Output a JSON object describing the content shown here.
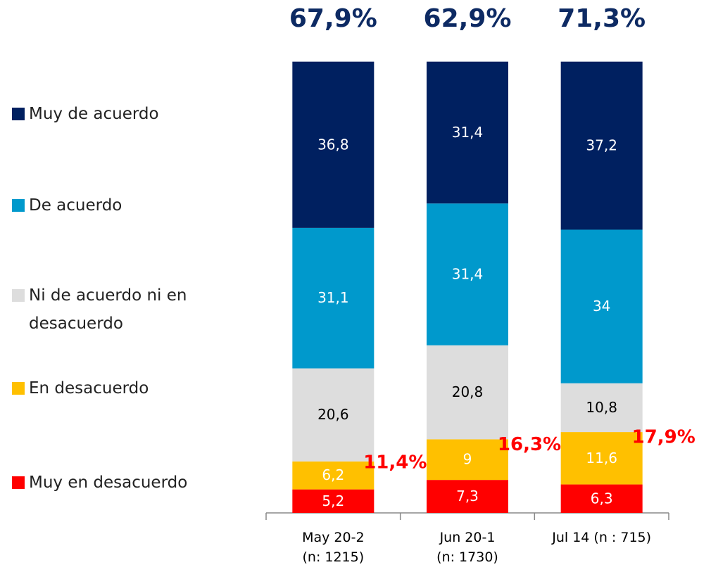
{
  "chart_data": {
    "type": "stacked_bar",
    "categories": [
      "May 20-2\n(n: 1215)",
      "Jun 20-1\n(n: 1730)",
      "Jul 14 (n : 715)"
    ],
    "series": [
      {
        "name": "Muy en desacuerdo",
        "color": "#ff0000",
        "label_color": "#ffffff",
        "values": [
          5.2,
          7.3,
          6.3
        ],
        "value_labels": [
          "5,2",
          "7,3",
          "6,3"
        ]
      },
      {
        "name": "En desacuerdo",
        "color": "#ffc000",
        "label_color": "#ffffff",
        "values": [
          6.2,
          9,
          11.6
        ],
        "value_labels": [
          "6,2",
          "9",
          "11,6"
        ]
      },
      {
        "name": "Ni de acuerdo ni en desacuerdo",
        "color": "#dddddd",
        "label_color": "#000000",
        "values": [
          20.6,
          20.8,
          10.8
        ],
        "value_labels": [
          "20,6",
          "20,8",
          "10,8"
        ]
      },
      {
        "name": "De acuerdo",
        "color": "#0099cc",
        "label_color": "#ffffff",
        "values": [
          31.1,
          31.4,
          34
        ],
        "value_labels": [
          "31,1",
          "31,4",
          "34"
        ]
      },
      {
        "name": "Muy de acuerdo",
        "color": "#002060",
        "label_color": "#ffffff",
        "values": [
          36.8,
          31.4,
          37.2
        ],
        "value_labels": [
          "36,8",
          "31,4",
          "37,2"
        ]
      }
    ],
    "top_labels": [
      "67,9%",
      "62,9%",
      "71,3%"
    ],
    "disagree_labels": [
      "11,4%",
      "16,3%",
      "17,9%"
    ],
    "ylim": [
      0,
      100
    ]
  }
}
